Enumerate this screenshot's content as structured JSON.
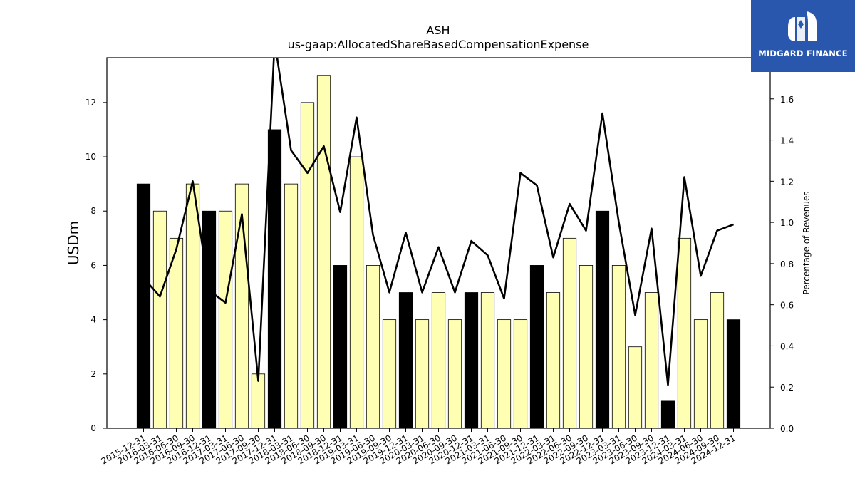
{
  "chart_data": {
    "type": "bar",
    "title": "ASH",
    "subtitle": "us-gaap:AllocatedShareBasedCompensationExpense",
    "ylabel": "USDm",
    "y2label": "Percentage of Revenues",
    "ylim": [
      0,
      13.65
    ],
    "y2lim": [
      0,
      1.8
    ],
    "yticks": [
      0,
      2,
      4,
      6,
      8,
      10,
      12
    ],
    "y2ticks": [
      0.0,
      0.2,
      0.4,
      0.6,
      0.8,
      1.0,
      1.2,
      1.4,
      1.6
    ],
    "categories": [
      "2015-12-31",
      "2016-03-31",
      "2016-06-30",
      "2016-09-30",
      "2016-12-31",
      "2017-03-31",
      "2017-06-30",
      "2017-09-30",
      "2017-12-31",
      "2018-03-31",
      "2018-06-30",
      "2018-09-30",
      "2018-12-31",
      "2019-03-31",
      "2019-06-30",
      "2019-09-30",
      "2019-12-31",
      "2020-03-31",
      "2020-06-30",
      "2020-09-30",
      "2020-12-31",
      "2021-03-31",
      "2021-06-30",
      "2021-09-30",
      "2021-12-31",
      "2022-03-31",
      "2022-06-30",
      "2022-09-30",
      "2022-12-31",
      "2023-03-31",
      "2023-06-30",
      "2023-09-30",
      "2023-12-31",
      "2024-03-31",
      "2024-06-30",
      "2024-09-30",
      "2024-12-31"
    ],
    "series": [
      {
        "kind": "bar",
        "values": [
          9,
          8,
          7,
          9,
          8,
          8,
          9,
          2,
          11,
          9,
          12,
          13,
          6,
          10,
          6,
          4,
          5,
          4,
          5,
          4,
          5,
          5,
          4,
          4,
          6,
          5,
          7,
          6,
          8,
          6,
          3,
          5,
          1,
          7,
          4,
          5,
          4
        ],
        "fiscal_year_end": [
          true,
          false,
          false,
          false,
          true,
          false,
          false,
          false,
          true,
          false,
          false,
          false,
          true,
          false,
          false,
          false,
          true,
          false,
          false,
          false,
          true,
          false,
          false,
          false,
          true,
          false,
          false,
          false,
          true,
          false,
          false,
          false,
          true,
          false,
          false,
          false,
          true
        ]
      },
      {
        "kind": "line",
        "axis": "right",
        "values": [
          0.73,
          0.64,
          0.87,
          1.2,
          0.67,
          0.61,
          1.04,
          0.23,
          1.88,
          1.35,
          1.24,
          1.37,
          1.05,
          1.51,
          0.94,
          0.66,
          0.95,
          0.66,
          0.88,
          0.66,
          0.91,
          0.84,
          0.63,
          1.24,
          1.18,
          0.83,
          1.09,
          0.96,
          1.53,
          1.0,
          0.55,
          0.97,
          0.21,
          1.22,
          0.74,
          0.96,
          0.99
        ]
      }
    ],
    "colors": {
      "bar_highlight": "#000000",
      "bar_default": "#ffffb3",
      "bar_edge": "#000000",
      "line": "#000000"
    },
    "grid": false
  },
  "logo": {
    "text": "MIDGARD FINANCE",
    "background": "#2a57ae"
  }
}
